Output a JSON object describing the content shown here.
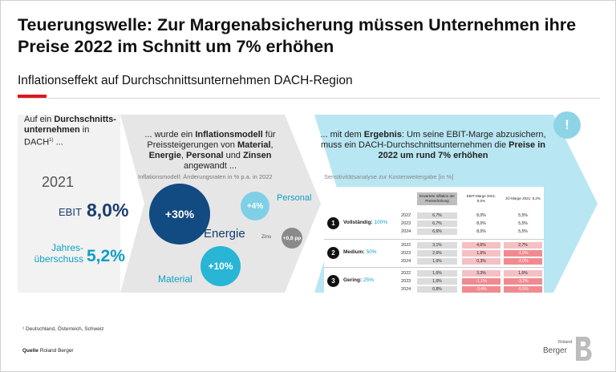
{
  "title": "Teuerungswelle: Zur Margenabsicherung müssen Unternehmen ihre Preise 2022 im Schnitt um 7% erhöhen",
  "subtitle": "Inflationseffekt auf Durchschnittsunternehmen DACH-Region",
  "colors": {
    "accent_red": "#e3131b",
    "navy": "#124a82",
    "cyan": "#28b5d6",
    "light_blue": "#b8e6f2"
  },
  "step1": {
    "text_a": "Auf ein ",
    "text_b": "Durchschnitts-unternehmen",
    "text_c": " in DACH",
    "sup": "1)",
    "text_d": " ...",
    "year": "2021",
    "ebit_label": "EBIT",
    "ebit_value": "8,0%",
    "jahres_label": "Jahres-überschuss",
    "jahres_value": "5,2%"
  },
  "step2": {
    "intro_a": "... wurde ein ",
    "intro_b": "Inflationsmodell",
    "intro_c": " für Preissteigerungen von ",
    "intro_d": "Material",
    "intro_e": ", ",
    "intro_f": "Energie",
    "intro_g": ", ",
    "intro_h": "Personal",
    "intro_i": " und ",
    "intro_j": "Zinsen",
    "intro_k": " angewandt ...",
    "caption": "Inflationsmodell: Änderungsraten in % p.a. in 2022",
    "energie_value": "+30%",
    "energie_label": "Energie",
    "material_value": "+10%",
    "material_label": "Material",
    "personal_value": "+4%",
    "personal_label": "Personal",
    "zins_value": "+0,8 pp",
    "zins_label": "Zins"
  },
  "step3": {
    "intro_a": "... mit dem ",
    "intro_b": "Ergebnis",
    "intro_c": ": Um seine EBIT-Marge abzusichern, muss ein DACH-Durchschnittsunternehmen die ",
    "intro_d": "Preise in 2022 um rund 7% erhöhen",
    "caption": "Sensitivitätsanalyse zur Kostenweitergabe [in %]",
    "headers": [
      "Erwartete Inflation der Preiserhöhung",
      "EBIT-Marge 2021: 8,0%",
      "JÜ-Marge 2021: 5,2%"
    ],
    "groups": [
      {
        "num": "1",
        "label": "Vollständig: ",
        "pct": "100%",
        "years": [
          "2022",
          "2023",
          "2024"
        ],
        "col1": [
          "6,7%",
          "6,7%",
          "6,6%"
        ],
        "col2": [
          "8,0%",
          "8,0%",
          "8,0%"
        ],
        "col3": [
          "5,5%",
          "5,5%",
          "5,5%"
        ]
      },
      {
        "num": "2",
        "label": "Medium: ",
        "pct": "50%",
        "years": [
          "2022",
          "2023",
          "2024"
        ],
        "col1": [
          "3,1%",
          "2,6%",
          "1,6%"
        ],
        "col2": [
          "4,6%",
          "1,6%",
          "0,3%"
        ],
        "col3": [
          "2,7%",
          "-1,0%",
          "-2,0%"
        ]
      },
      {
        "num": "3",
        "label": "Gering: ",
        "pct": "25%",
        "years": [
          "2022",
          "2023",
          "2024"
        ],
        "col1": [
          "1,6%",
          "1,6%",
          "0,8%"
        ],
        "col2": [
          "3,3%",
          "-1,1%",
          "-3,4%"
        ],
        "col3": [
          "1,6%",
          "-3,2%",
          "-5,5%"
        ]
      }
    ],
    "exclaim": "!"
  },
  "footnote": "¹ Deutschland, Österreich, Schweiz",
  "quelle_label": "Quelle",
  "quelle_value": "Roland Berger",
  "brand_small": "Roland",
  "brand_big": "Berger"
}
